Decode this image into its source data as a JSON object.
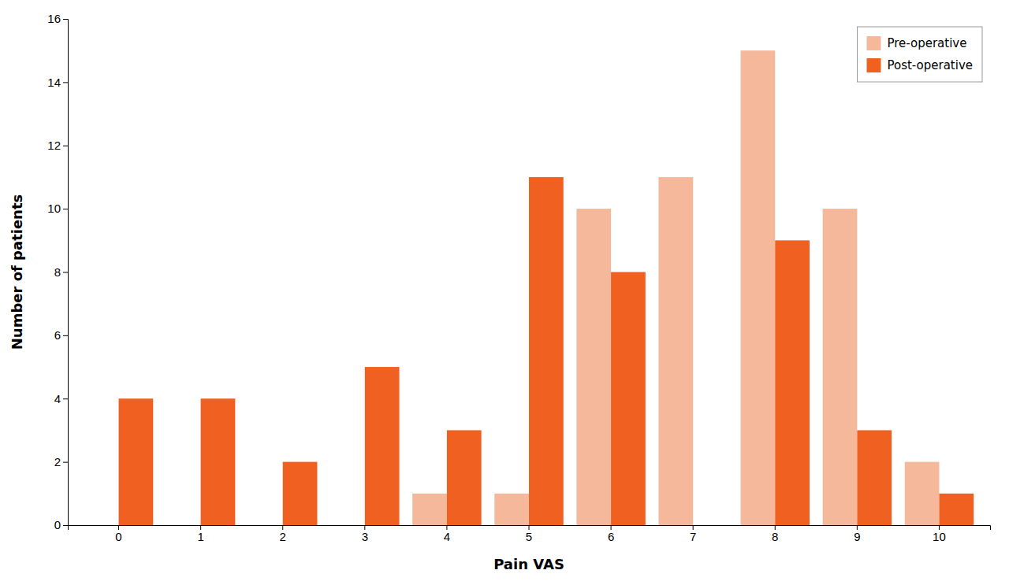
{
  "chart_data": {
    "type": "bar",
    "xlabel": "Pain VAS",
    "ylabel": "Number of patients",
    "categories": [
      "0",
      "1",
      "2",
      "3",
      "4",
      "5",
      "6",
      "7",
      "8",
      "9",
      "10"
    ],
    "series": [
      {
        "name": "Pre-operative",
        "color": "#F5B89A",
        "values": [
          0,
          0,
          0,
          0,
          1,
          1,
          10,
          11,
          15,
          10,
          2
        ]
      },
      {
        "name": "Post-operative",
        "color": "#F06020",
        "values": [
          4,
          4,
          2,
          5,
          3,
          11,
          8,
          0,
          9,
          3,
          1
        ]
      }
    ],
    "ylim": [
      0,
      16
    ],
    "yticks": [
      0,
      2,
      4,
      6,
      8,
      10,
      12,
      14,
      16
    ],
    "grid": false,
    "legend": "upper right"
  }
}
